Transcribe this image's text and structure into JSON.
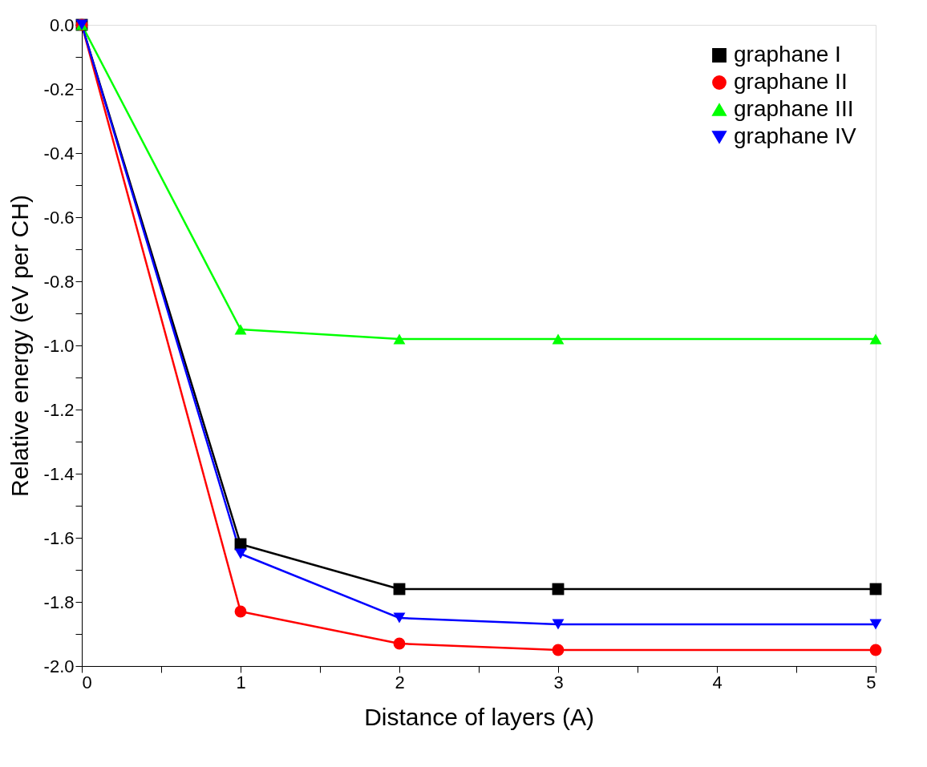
{
  "chart_data": {
    "type": "line",
    "xlabel": "Distance of layers (A)",
    "ylabel": "Relative energy (eV per CH)",
    "x": [
      0,
      1,
      2,
      3,
      5
    ],
    "series": [
      {
        "name": "graphane I",
        "color": "#000000",
        "marker": "square",
        "values": [
          0,
          -1.62,
          -1.76,
          -1.76,
          -1.76
        ]
      },
      {
        "name": "graphane II",
        "color": "#ff0000",
        "marker": "circle",
        "values": [
          0,
          -1.83,
          -1.93,
          -1.95,
          -1.95
        ]
      },
      {
        "name": "graphane III",
        "color": "#00ff00",
        "marker": "triangle",
        "values": [
          0,
          -0.95,
          -0.98,
          -0.98,
          -0.98
        ]
      },
      {
        "name": "graphane IV",
        "color": "#0000ff",
        "marker": "triangle-down",
        "values": [
          0,
          -1.65,
          -1.85,
          -1.87,
          -1.87
        ]
      }
    ],
    "xlim": [
      0,
      5
    ],
    "xticks": [
      0,
      {
        "value": 0.5,
        "label": null
      },
      1,
      {
        "value": 1.5,
        "label": null
      },
      2,
      {
        "value": 2.5,
        "label": null
      },
      3,
      {
        "value": 3.5,
        "label": null
      },
      4,
      {
        "value": 4.5,
        "label": null
      },
      5
    ],
    "ylim": [
      -2,
      0
    ],
    "yticks": [
      {
        "value": 0,
        "label": "0.0"
      },
      {
        "value": -0.1,
        "label": null
      },
      -0.2,
      {
        "value": -0.3,
        "label": null
      },
      -0.4,
      {
        "value": -0.5,
        "label": null
      },
      -0.6,
      {
        "value": -0.7,
        "label": null
      },
      -0.8,
      {
        "value": -0.9,
        "label": null
      },
      {
        "value": -1,
        "label": "-1.0"
      },
      {
        "value": -1.1,
        "label": null
      },
      -1.2,
      {
        "value": -1.3,
        "label": null
      },
      -1.4,
      {
        "value": -1.5,
        "label": null
      },
      -1.6,
      {
        "value": -1.7,
        "label": null
      },
      -1.8,
      {
        "value": -1.9,
        "label": null
      },
      {
        "value": -2,
        "label": "-2.0"
      }
    ],
    "grid": false,
    "legend": "top right",
    "line_style": "solid"
  }
}
